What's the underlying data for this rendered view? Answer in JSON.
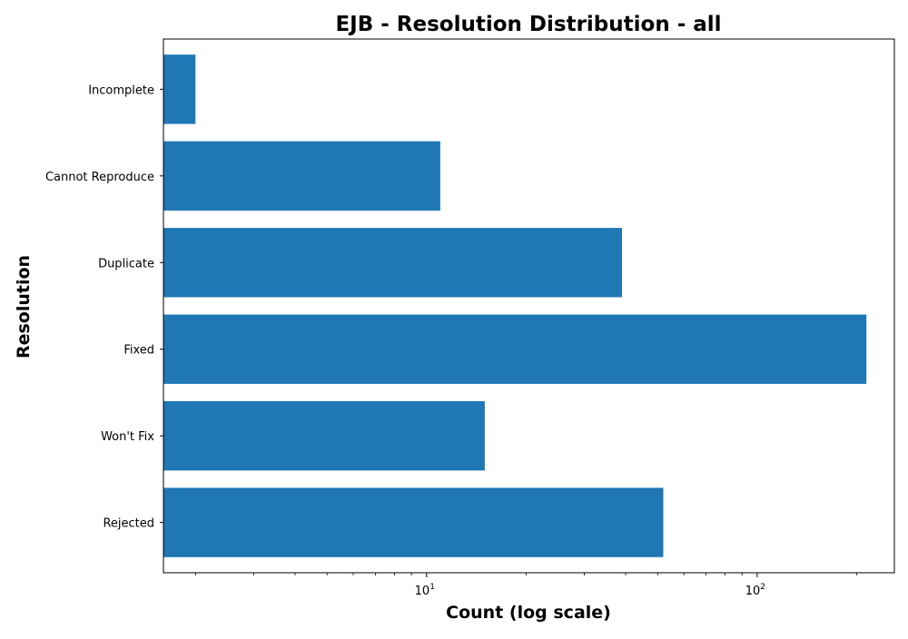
{
  "chart_data": {
    "type": "bar",
    "orientation": "horizontal",
    "title": "EJB - Resolution Distribution - all",
    "xlabel": "Count (log scale)",
    "ylabel": "Resolution",
    "x_scale": "log",
    "xlim": [
      1.6,
      260
    ],
    "x_ticks": [
      {
        "value": 10,
        "base": "10",
        "exponent": "1"
      },
      {
        "value": 100,
        "base": "10",
        "exponent": "2"
      }
    ],
    "categories": [
      "Incomplete",
      "Cannot Reproduce",
      "Duplicate",
      "Fixed",
      "Won't Fix",
      "Rejected"
    ],
    "values": [
      2,
      11,
      39,
      214,
      15,
      52
    ],
    "color": "#1f77b4",
    "grid": false,
    "legend": "none"
  }
}
